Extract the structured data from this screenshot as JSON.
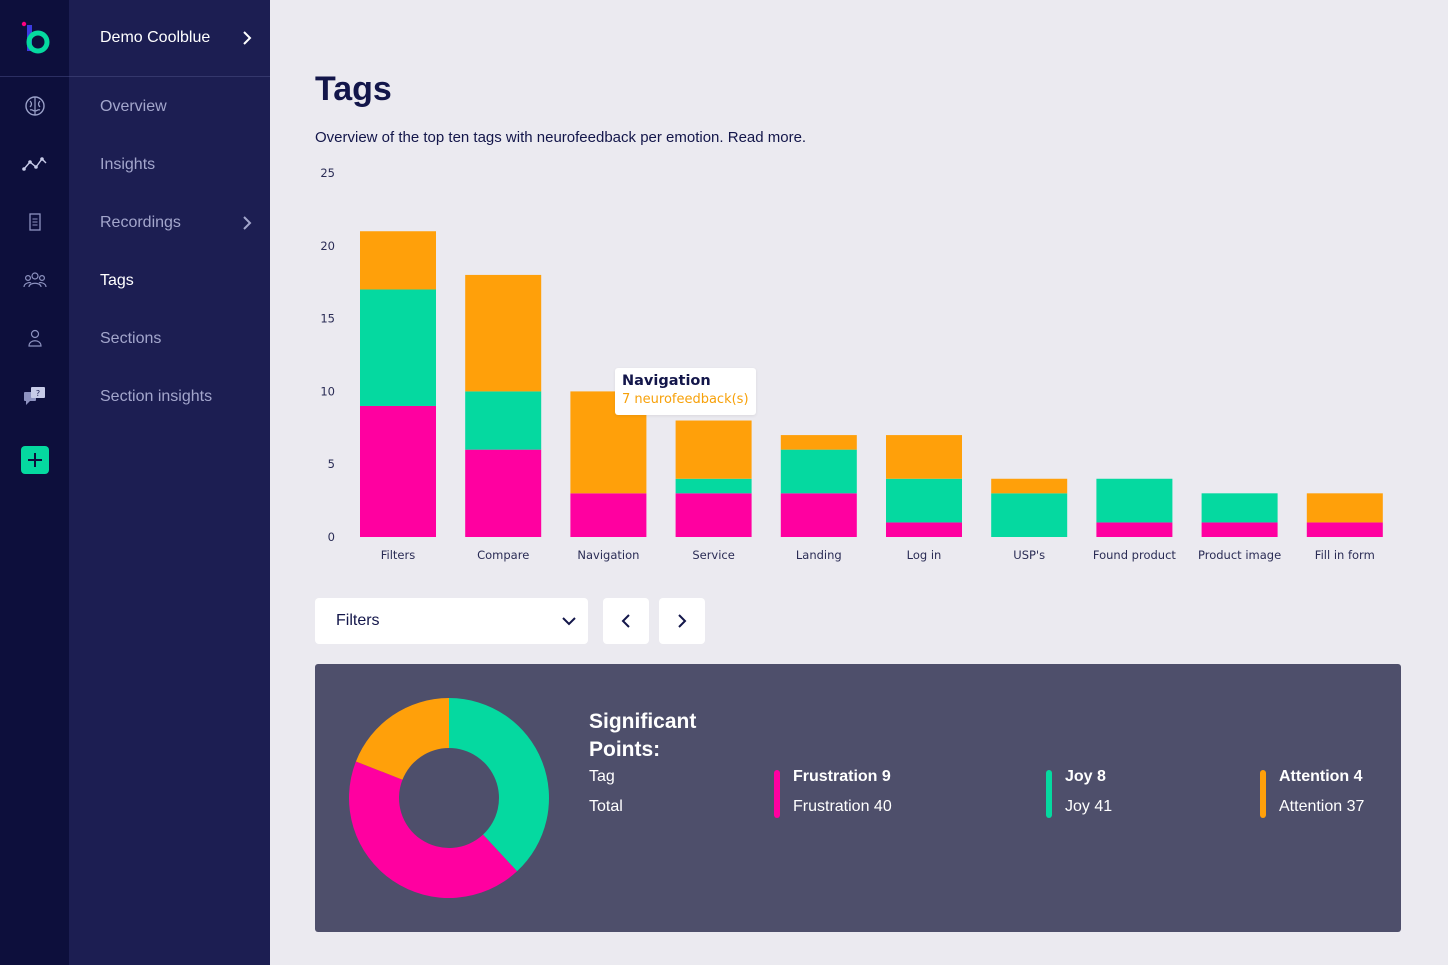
{
  "app": {
    "workspace": "Demo Coolblue"
  },
  "colors": {
    "frustration": "#ff00a0",
    "joy": "#05d9a0",
    "attention": "#ffa00a",
    "sidebar": "#1c1e52",
    "rail": "#0d0f3c"
  },
  "rail": {
    "icons": [
      "brain-icon",
      "trend-line-icon",
      "document-icon",
      "group-icon",
      "user-icon",
      "chat-question-icon",
      "plus-icon"
    ]
  },
  "sidebar": {
    "items": [
      {
        "label": "Overview"
      },
      {
        "label": "Insights"
      },
      {
        "label": "Recordings"
      },
      {
        "label": "Tags",
        "active": true
      },
      {
        "label": "Sections"
      },
      {
        "label": "Section insights"
      }
    ]
  },
  "page": {
    "title": "Tags",
    "subtitle": "Overview of the top ten tags with neurofeedback per emotion. Read more."
  },
  "tooltip": {
    "title": "Navigation",
    "value": "7 neurofeedback(s)"
  },
  "filter": {
    "selected": "Filters"
  },
  "chart_data": {
    "type": "bar",
    "stacked": true,
    "categories": [
      "Filters",
      "Compare",
      "Navigation",
      "Service",
      "Landing",
      "Log in",
      "USP's",
      "Found product",
      "Product image",
      "Fill in form"
    ],
    "series": [
      {
        "color": "#ff00a0",
        "values": [
          9,
          6,
          3,
          3,
          3,
          1,
          0,
          1,
          1,
          1
        ]
      },
      {
        "color": "#05d9a0",
        "values": [
          8,
          4,
          0,
          1,
          3,
          3,
          3,
          3,
          2,
          0
        ]
      },
      {
        "color": "#ffa00a",
        "values": [
          4,
          8,
          7,
          4,
          1,
          3,
          1,
          0,
          0,
          2
        ]
      }
    ],
    "ylim": [
      0,
      25
    ],
    "yticks": [
      "0",
      "5",
      "10",
      "15",
      "20",
      "25"
    ],
    "grid": false
  },
  "summary": {
    "title": "Significant Points:",
    "row_tag": "Tag",
    "row_total": "Total",
    "items": [
      {
        "tag": "Frustration 9",
        "total": "Frustration 40"
      },
      {
        "tag": "Joy 8",
        "total": "Joy 41"
      },
      {
        "tag": "Attention 4",
        "total": "Attention 37"
      }
    ],
    "donut_values": [
      8,
      9,
      4
    ]
  }
}
